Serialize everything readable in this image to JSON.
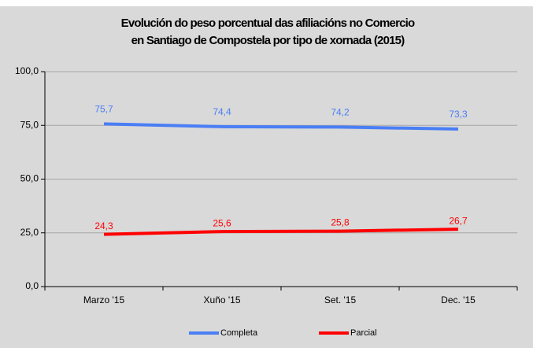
{
  "chart_data": {
    "type": "line",
    "title": [
      "Evolución do peso porcentual das afiliacións no Comercio",
      "en Santiago de Compostela por tipo de xornada (2015)"
    ],
    "categories": [
      "Marzo '15",
      "Xuño '15",
      "Set. '15",
      "Dec. '15"
    ],
    "series": [
      {
        "name": "Completa",
        "color": "#4a7ef5",
        "values": [
          75.7,
          74.4,
          74.2,
          73.3
        ],
        "value_labels": [
          "75,7",
          "74,4",
          "74,2",
          "73,3"
        ]
      },
      {
        "name": "Parcial",
        "color": "#ff0000",
        "values": [
          24.3,
          25.6,
          25.8,
          26.7
        ],
        "value_labels": [
          "24,3",
          "25,6",
          "25,8",
          "26,7"
        ]
      }
    ],
    "ylim": [
      0,
      100
    ],
    "yticks": [
      {
        "value": 0,
        "label": "0,0"
      },
      {
        "value": 25,
        "label": "25,0"
      },
      {
        "value": 50,
        "label": "50,0"
      },
      {
        "value": 75,
        "label": "75,0"
      },
      {
        "value": 100,
        "label": "100,0"
      }
    ],
    "grid": true,
    "legend": "bottom"
  }
}
